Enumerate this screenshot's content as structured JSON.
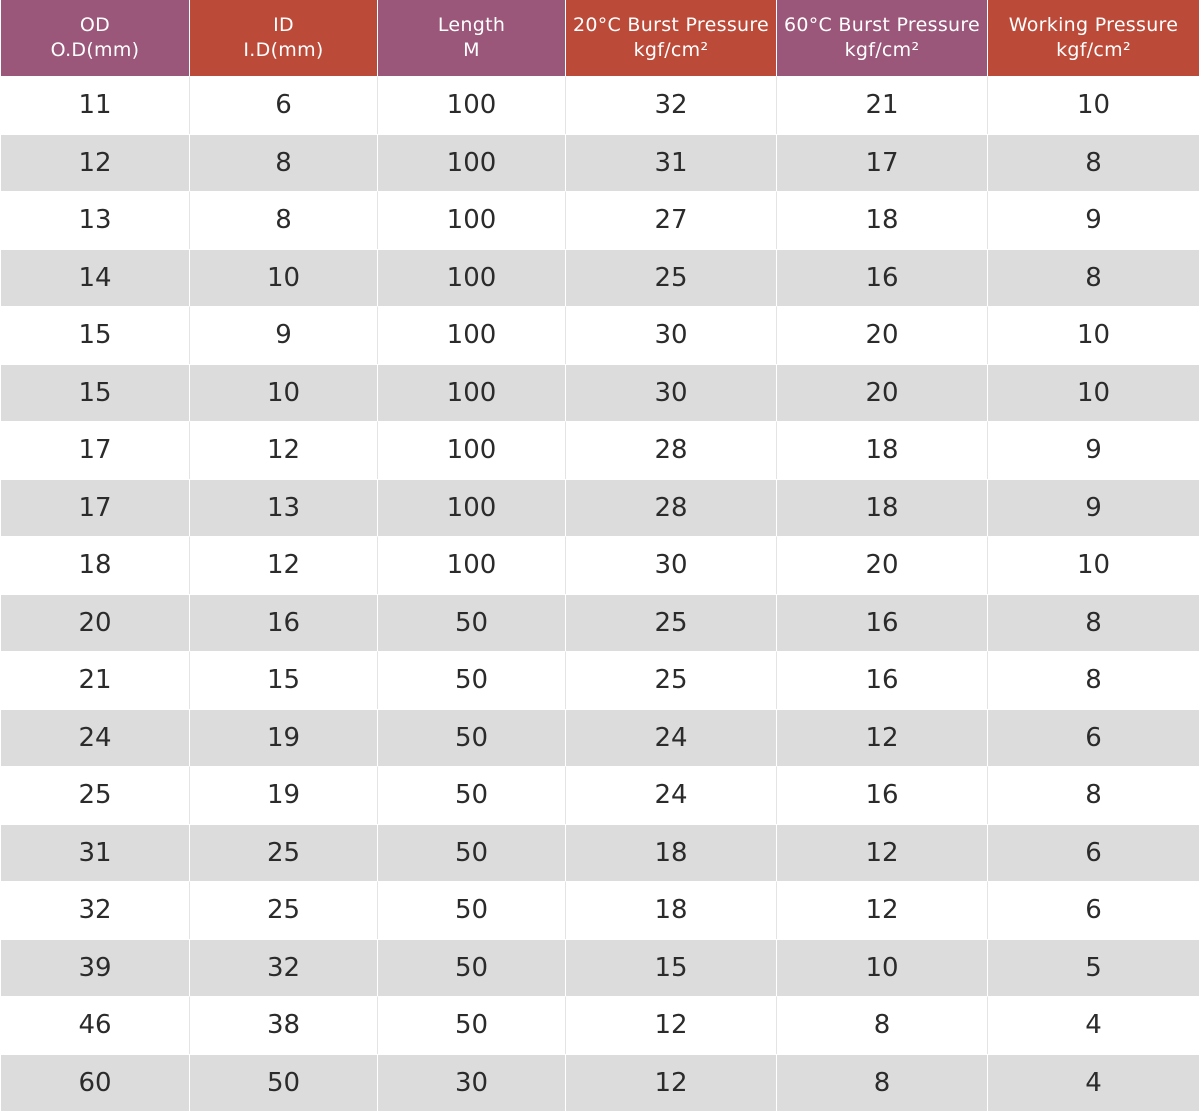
{
  "table": {
    "headers": [
      {
        "line1": "OD",
        "line2": "O.D(mm)",
        "color": "#9a5779"
      },
      {
        "line1": "ID",
        "line2": "I.D(mm)",
        "color": "#bc4a39"
      },
      {
        "line1": "Length",
        "line2": "M",
        "color": "#9a5779"
      },
      {
        "line1": "20°C Burst Pressure",
        "line2": "kgf/cm²",
        "color": "#bc4a39"
      },
      {
        "line1": "60°C Burst Pressure",
        "line2": "kgf/cm²",
        "color": "#9a5779"
      },
      {
        "line1": "Working Pressure",
        "line2": "kgf/cm²",
        "color": "#bc4a39"
      }
    ],
    "rows": [
      [
        "11",
        "6",
        "100",
        "32",
        "21",
        "10"
      ],
      [
        "12",
        "8",
        "100",
        "31",
        "17",
        "8"
      ],
      [
        "13",
        "8",
        "100",
        "27",
        "18",
        "9"
      ],
      [
        "14",
        "10",
        "100",
        "25",
        "16",
        "8"
      ],
      [
        "15",
        "9",
        "100",
        "30",
        "20",
        "10"
      ],
      [
        "15",
        "10",
        "100",
        "30",
        "20",
        "10"
      ],
      [
        "17",
        "12",
        "100",
        "28",
        "18",
        "9"
      ],
      [
        "17",
        "13",
        "100",
        "28",
        "18",
        "9"
      ],
      [
        "18",
        "12",
        "100",
        "30",
        "20",
        "10"
      ],
      [
        "20",
        "16",
        "50",
        "25",
        "16",
        "8"
      ],
      [
        "21",
        "15",
        "50",
        "25",
        "16",
        "8"
      ],
      [
        "24",
        "19",
        "50",
        "24",
        "12",
        "6"
      ],
      [
        "25",
        "19",
        "50",
        "24",
        "16",
        "8"
      ],
      [
        "31",
        "25",
        "50",
        "18",
        "12",
        "6"
      ],
      [
        "32",
        "25",
        "50",
        "18",
        "12",
        "6"
      ],
      [
        "39",
        "32",
        "50",
        "15",
        "10",
        "5"
      ],
      [
        "46",
        "38",
        "50",
        "12",
        "8",
        "4"
      ],
      [
        "60",
        "50",
        "30",
        "12",
        "8",
        "4"
      ]
    ],
    "stripe_color": "#dcdcdc"
  }
}
